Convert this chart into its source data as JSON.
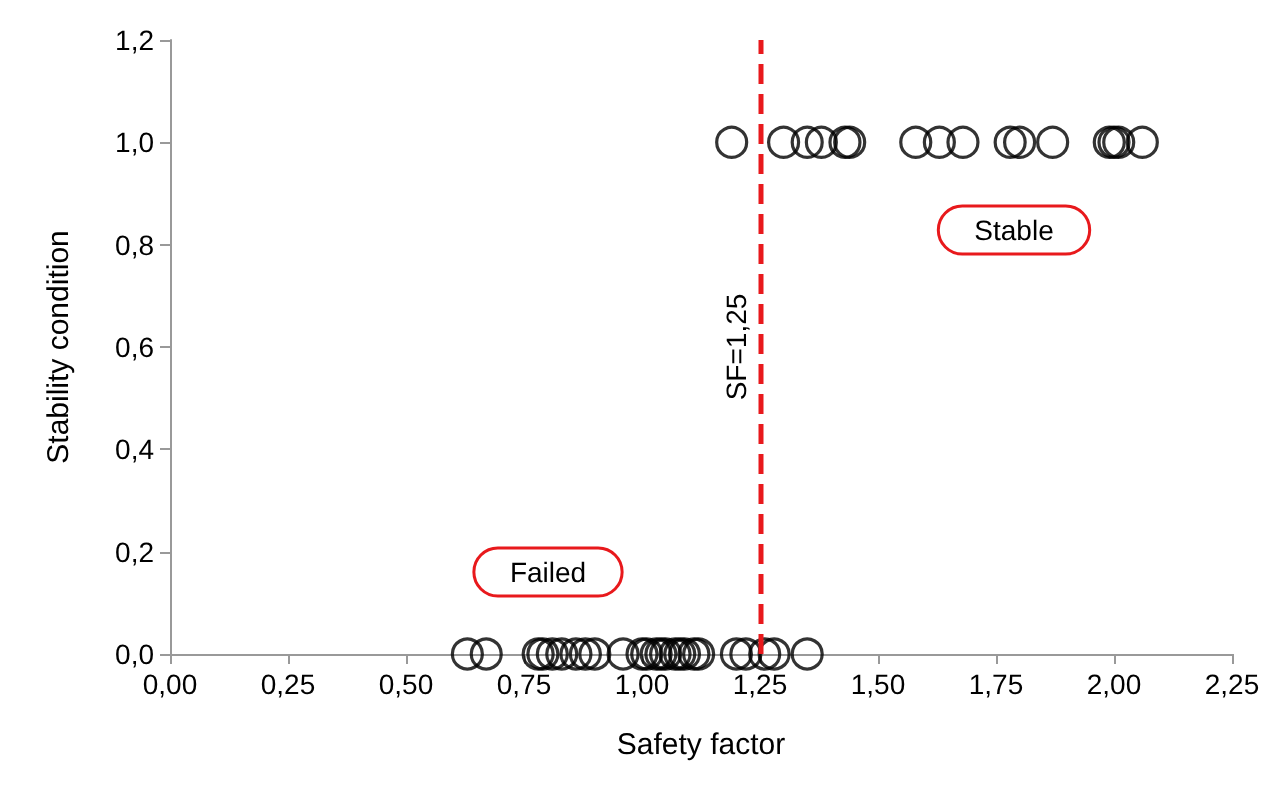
{
  "chart_data": {
    "type": "scatter",
    "xlabel": "Safety factor",
    "ylabel": "Stability condition",
    "series": [
      {
        "color": "#000000",
        "x": [
          0.63,
          0.67,
          0.78,
          0.79,
          0.81,
          0.83,
          0.86,
          0.88,
          0.9,
          0.96,
          1.0,
          1.01,
          1.03,
          1.04,
          1.05,
          1.07,
          1.08,
          1.09,
          1.11,
          1.12,
          1.2,
          1.22,
          1.26,
          1.28,
          1.35,
          1.19,
          1.3,
          1.35,
          1.38,
          1.43,
          1.44,
          1.58,
          1.63,
          1.68,
          1.78,
          1.8,
          1.87,
          1.99,
          2.0,
          2.01,
          2.06
        ],
        "values": [
          0,
          0,
          0,
          0,
          0,
          0,
          0,
          0,
          0,
          0,
          0,
          0,
          0,
          0,
          0,
          0,
          0,
          0,
          0,
          0,
          0,
          0,
          0,
          0,
          0,
          1,
          1,
          1,
          1,
          1,
          1,
          1,
          1,
          1,
          1,
          1,
          1,
          1,
          1,
          1,
          1
        ]
      }
    ],
    "xlim": [
      0,
      2.25
    ],
    "xticks": [
      {
        "value": 0,
        "label": "0,00"
      },
      {
        "value": 0.25,
        "label": "0,25"
      },
      {
        "value": 0.5,
        "label": "0,50"
      },
      {
        "value": 0.75,
        "label": "0,75"
      },
      {
        "value": 1,
        "label": "1,00"
      },
      {
        "value": 1.25,
        "label": "1,25"
      },
      {
        "value": 1.5,
        "label": "1,50"
      },
      {
        "value": 1.75,
        "label": "1,75"
      },
      {
        "value": 2,
        "label": "2,00"
      },
      {
        "value": 2.25,
        "label": "2,25"
      }
    ],
    "ylim": [
      0,
      1.2
    ],
    "yticks": [
      {
        "value": 0,
        "label": "0,0"
      },
      {
        "value": 0.2,
        "label": "0,2"
      },
      {
        "value": 0.4,
        "label": "0,4"
      },
      {
        "value": 0.6,
        "label": "0,6"
      },
      {
        "value": 0.8,
        "label": "0,8"
      },
      {
        "value": 1,
        "label": "1,0"
      },
      {
        "value": 1.2,
        "label": "1,2"
      }
    ],
    "ref_lines": [
      {
        "axis": "x",
        "value": 1.25,
        "label": "SF=1,25",
        "color": "#e8191c",
        "line_style": "dashed"
      }
    ],
    "annotations": [
      "Stable",
      "Failed"
    ],
    "marker": "circle"
  }
}
